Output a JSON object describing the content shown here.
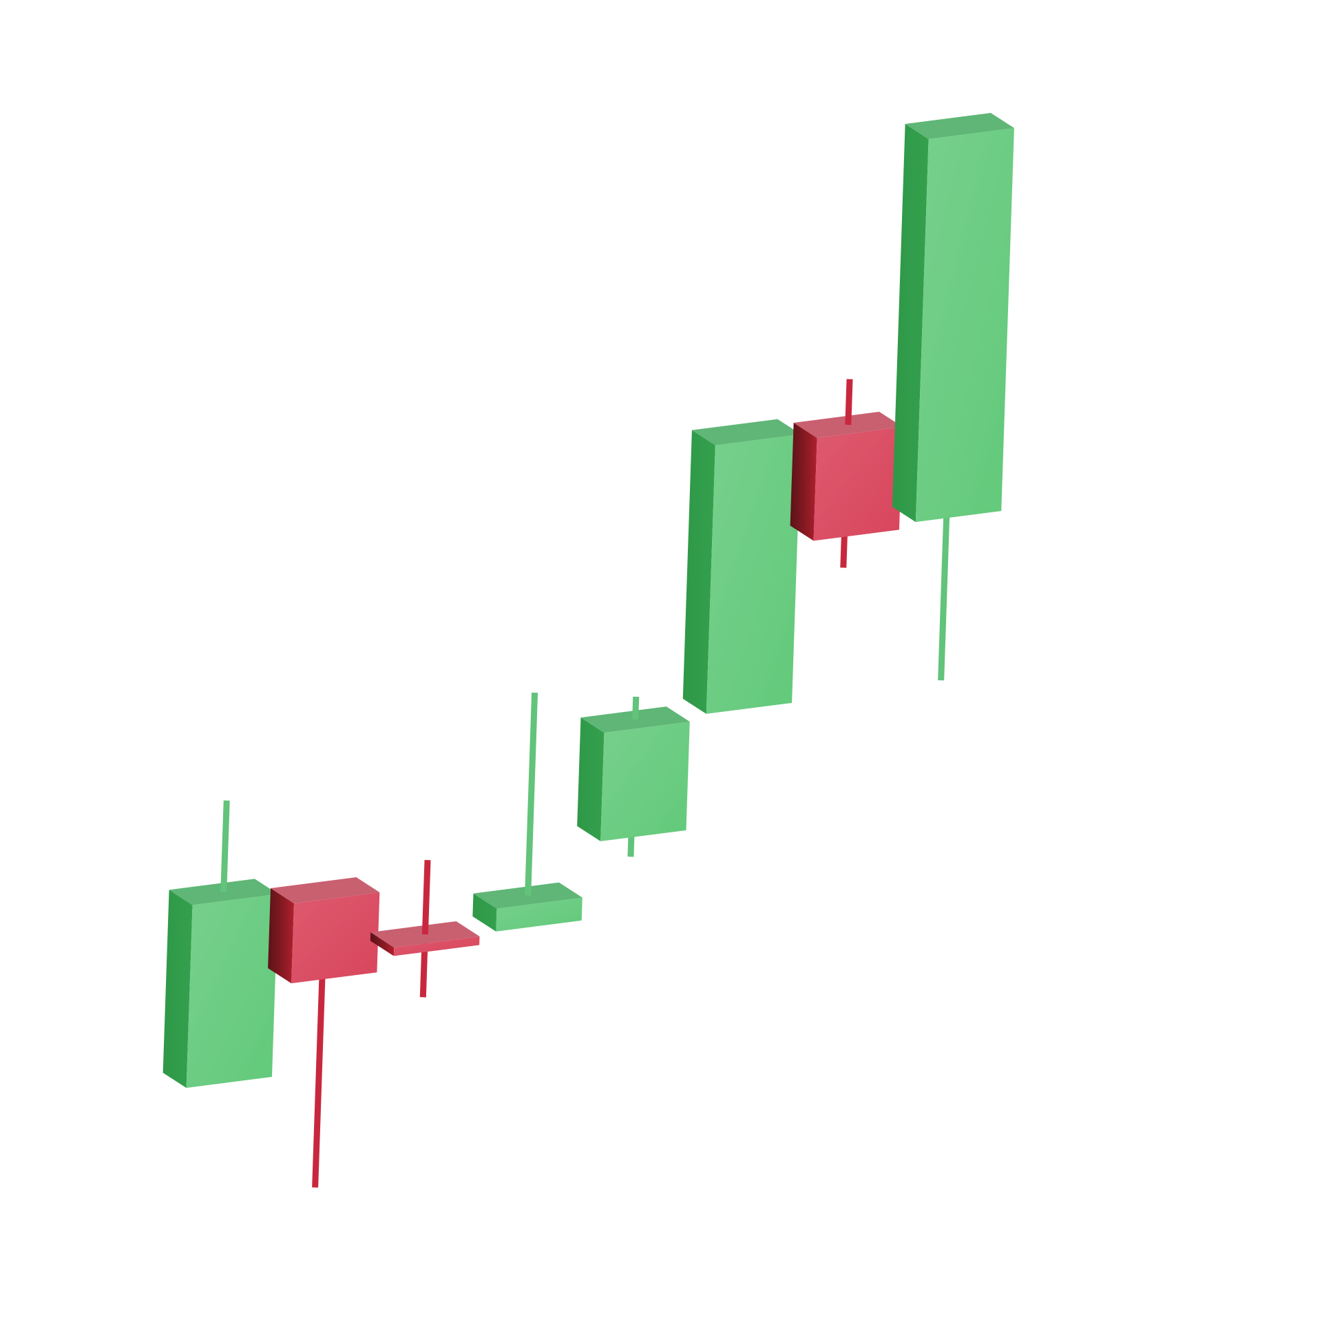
{
  "chart_data": {
    "type": "candlestick",
    "title": "",
    "xlabel": "",
    "ylabel": "",
    "grid": false,
    "legend": "none",
    "colors": {
      "up_front": "#6fcd84",
      "up_side": "#2f9a49",
      "up_top": "#5fb676",
      "down_front": "#dc5065",
      "down_side": "#7a1820",
      "down_top": "#c86070",
      "up_wick": "#62c37a",
      "down_wick": "#c8283e"
    },
    "candles": [
      {
        "index": 1,
        "direction": "up",
        "open": 1.0,
        "close": 4.2,
        "high": 5.8,
        "low": 1.0
      },
      {
        "index": 2,
        "direction": "down",
        "open": 4.0,
        "close": 2.6,
        "high": 4.0,
        "low": -1.2
      },
      {
        "index": 3,
        "direction": "down",
        "open": 3.0,
        "close": 2.85,
        "high": 4.3,
        "low": 1.9
      },
      {
        "index": 4,
        "direction": "up",
        "open": 3.05,
        "close": 3.45,
        "high": 7.0,
        "low": 3.05
      },
      {
        "index": 5,
        "direction": "up",
        "open": 4.4,
        "close": 6.3,
        "high": 6.7,
        "low": 3.9
      },
      {
        "index": 6,
        "direction": "up",
        "open": 6.4,
        "close": 11.1,
        "high": 11.1,
        "low": 6.4
      },
      {
        "index": 7,
        "direction": "down",
        "open": 11.0,
        "close": 9.2,
        "high": 11.8,
        "low": 8.5
      },
      {
        "index": 8,
        "direction": "up",
        "open": 9.3,
        "close": 16.0,
        "high": 16.0,
        "low": 6.3
      }
    ],
    "ylim": [
      -1.5,
      16.5
    ]
  }
}
